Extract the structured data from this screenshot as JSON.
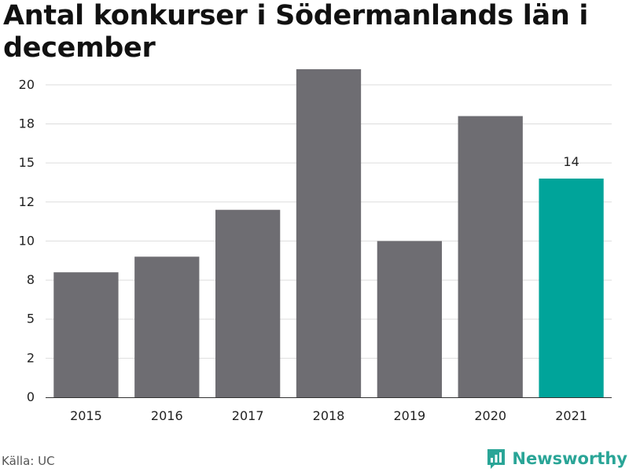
{
  "chart_data": {
    "type": "bar",
    "title": "Antal konkurser i Södermanlands län i december",
    "categories": [
      "2015",
      "2016",
      "2017",
      "2018",
      "2019",
      "2020",
      "2021"
    ],
    "values": [
      8,
      9,
      12,
      21,
      10,
      18,
      14
    ],
    "highlight_index": 6,
    "data_labels": [
      {
        "index": 6,
        "text": "14"
      }
    ],
    "y_ticks": [
      "0",
      "2",
      "5",
      "8",
      "10",
      "12",
      "15",
      "18",
      "20"
    ],
    "y_tick_values": [
      0,
      2.5,
      5,
      7.5,
      10,
      12.5,
      15,
      17.5,
      20
    ],
    "ylim": [
      0,
      21
    ],
    "xlabel": "",
    "ylabel": "",
    "grid": true,
    "colors": {
      "bar": "#6e6d72",
      "highlight": "#00a49a",
      "grid": "#dddddd",
      "axis": "#333333"
    }
  },
  "footer": {
    "source": "Källa: UC",
    "brand": "Newsworthy",
    "brand_icon": "newsworthy-logo-icon",
    "brand_color": "#2aa597"
  }
}
